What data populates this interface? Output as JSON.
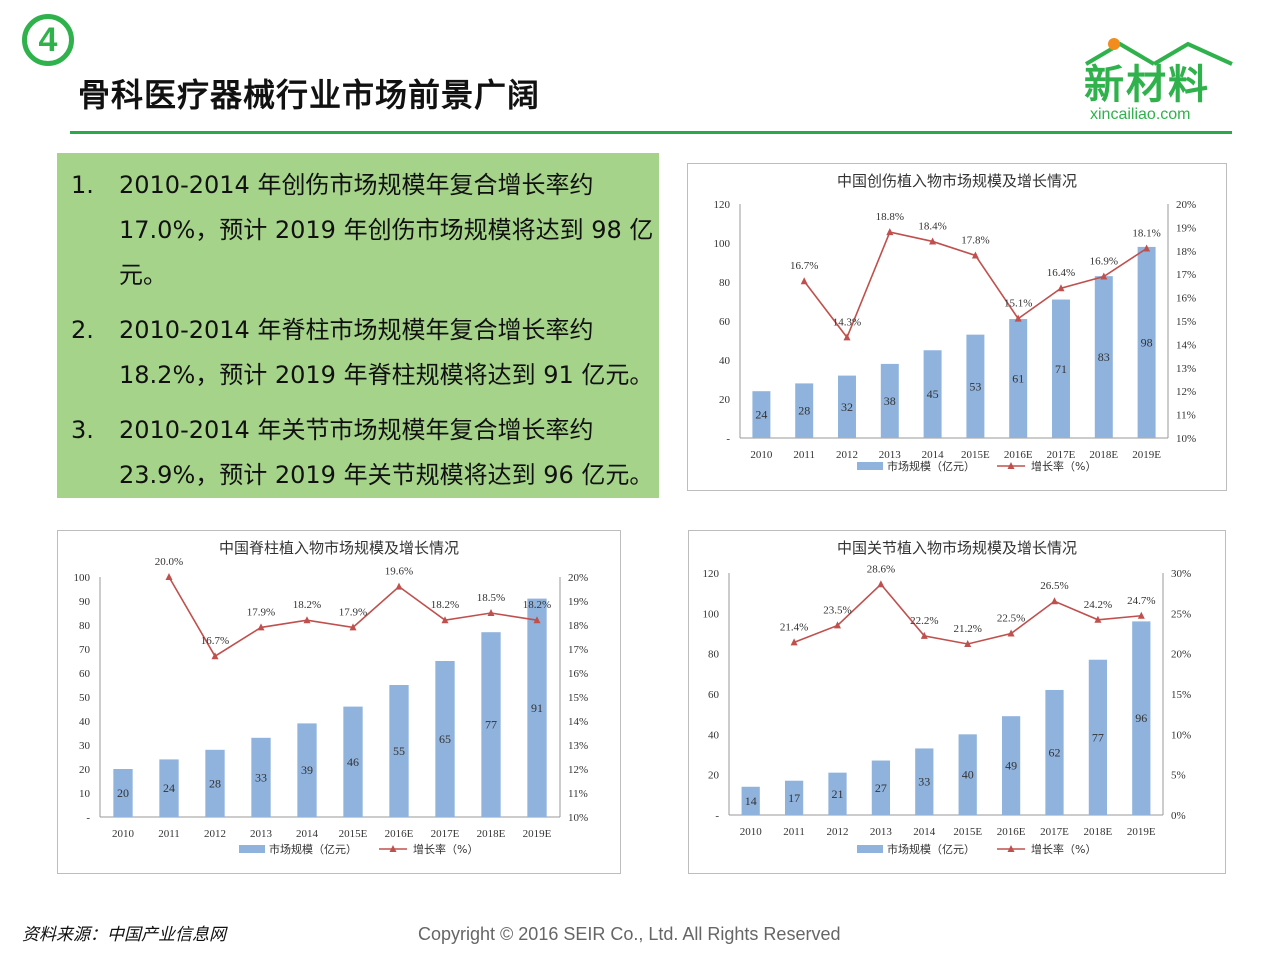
{
  "header": {
    "badge": "4",
    "title": "骨科医疗器械行业市场前景广阔",
    "logo_main": "新材料",
    "logo_sub": "xincailiao.com"
  },
  "summary": {
    "items": [
      {
        "num": "1.",
        "text": "2010-2014 年创伤市场规模年复合增长率约 17.0%，预计 2019 年创伤市场规模将达到 98 亿元。"
      },
      {
        "num": "2.",
        "text": "2010-2014 年脊柱市场规模年复合增长率约 18.2%，预计 2019 年脊柱规模将达到 91 亿元。"
      },
      {
        "num": "3.",
        "text": "2010-2014 年关节市场规模年复合增长率约 23.9%，预计 2019 年关节规模将达到 96 亿元。"
      }
    ]
  },
  "footer": {
    "source": "资料来源：中国产业信息网",
    "copyright": "Copyright © 2016  SEIR Co., Ltd. All Rights Reserved"
  },
  "colors": {
    "accent": "#2fb24c",
    "bar": "#8fb3dd",
    "line": "#c0504d",
    "textbox": "#a6d38a"
  },
  "chart_data": [
    {
      "id": "trauma",
      "type": "bar",
      "title": "中国创伤植入物市场规模及增长情况",
      "categories": [
        "2010",
        "2011",
        "2012",
        "2013",
        "2014",
        "2015E",
        "2016E",
        "2017E",
        "2018E",
        "2019E"
      ],
      "series": [
        {
          "name": "市场规模（亿元）",
          "type": "bar",
          "axis": "left",
          "values": [
            24,
            28,
            32,
            38,
            45,
            53,
            61,
            71,
            83,
            98
          ]
        },
        {
          "name": "增长率（%）",
          "type": "line",
          "axis": "right",
          "values": [
            null,
            16.7,
            14.3,
            18.8,
            18.4,
            17.8,
            15.1,
            16.4,
            16.9,
            18.1
          ],
          "labels": [
            null,
            "16.7%",
            "14.3%",
            "18.8%",
            "18.4%",
            "17.8%",
            "15.1%",
            "16.4%",
            "16.9%",
            "18.1%"
          ]
        }
      ],
      "ylim": [
        0,
        120
      ],
      "yticks": [
        "-",
        "20",
        "40",
        "60",
        "80",
        "100",
        "120"
      ],
      "y2lim": [
        10,
        20
      ],
      "y2ticks": [
        "10%",
        "11%",
        "12%",
        "13%",
        "14%",
        "15%",
        "16%",
        "17%",
        "18%",
        "19%",
        "20%"
      ],
      "legend": "bottom",
      "grid": false
    },
    {
      "id": "spine",
      "type": "bar",
      "title": "中国脊柱植入物市场规模及增长情况",
      "categories": [
        "2010",
        "2011",
        "2012",
        "2013",
        "2014",
        "2015E",
        "2016E",
        "2017E",
        "2018E",
        "2019E"
      ],
      "series": [
        {
          "name": "市场规模（亿元）",
          "type": "bar",
          "axis": "left",
          "values": [
            20,
            24,
            28,
            33,
            39,
            46,
            55,
            65,
            77,
            91
          ]
        },
        {
          "name": "增长率（%）",
          "type": "line",
          "axis": "right",
          "values": [
            null,
            20.0,
            16.7,
            17.9,
            18.2,
            17.9,
            19.6,
            18.2,
            18.5,
            18.2
          ],
          "labels": [
            null,
            "20.0%",
            "16.7%",
            "17.9%",
            "18.2%",
            "17.9%",
            "19.6%",
            "18.2%",
            "18.5%",
            "18.2%"
          ]
        }
      ],
      "ylim": [
        0,
        100
      ],
      "yticks": [
        "-",
        "10",
        "20",
        "30",
        "40",
        "50",
        "60",
        "70",
        "80",
        "90",
        "100"
      ],
      "y2lim": [
        10,
        20
      ],
      "y2ticks": [
        "10%",
        "11%",
        "12%",
        "13%",
        "14%",
        "15%",
        "16%",
        "17%",
        "18%",
        "19%",
        "20%"
      ],
      "legend": "bottom",
      "grid": false
    },
    {
      "id": "joint",
      "type": "bar",
      "title": "中国关节植入物市场规模及增长情况",
      "categories": [
        "2010",
        "2011",
        "2012",
        "2013",
        "2014",
        "2015E",
        "2016E",
        "2017E",
        "2018E",
        "2019E"
      ],
      "series": [
        {
          "name": "市场规模（亿元）",
          "type": "bar",
          "axis": "left",
          "values": [
            14,
            17,
            21,
            27,
            33,
            40,
            49,
            62,
            77,
            96
          ]
        },
        {
          "name": "增长率（%）",
          "type": "line",
          "axis": "right",
          "values": [
            null,
            21.4,
            23.5,
            28.6,
            22.2,
            21.2,
            22.5,
            26.5,
            24.2,
            24.7
          ],
          "labels": [
            null,
            "21.4%",
            "23.5%",
            "28.6%",
            "22.2%",
            "21.2%",
            "22.5%",
            "26.5%",
            "24.2%",
            "24.7%"
          ]
        }
      ],
      "ylim": [
        0,
        120
      ],
      "yticks": [
        "-",
        "20",
        "40",
        "60",
        "80",
        "100",
        "120"
      ],
      "y2lim": [
        0,
        30
      ],
      "y2ticks": [
        "0%",
        "5%",
        "10%",
        "15%",
        "20%",
        "25%",
        "30%"
      ],
      "legend": "bottom",
      "grid": false
    }
  ]
}
